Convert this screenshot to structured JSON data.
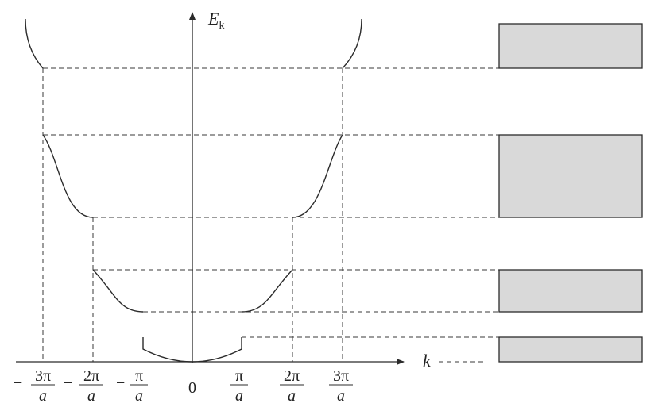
{
  "axes": {
    "y_label": {
      "main": "E",
      "sub": "k"
    },
    "x_label": "k"
  },
  "tick_labels": [
    {
      "id": "neg3",
      "sign": "−",
      "num": "3π",
      "den": "a"
    },
    {
      "id": "neg2",
      "sign": "−",
      "num": "2π",
      "den": "a"
    },
    {
      "id": "neg1",
      "sign": "−",
      "num": "π",
      "den": "a"
    },
    {
      "id": "zero",
      "text": "0"
    },
    {
      "id": "pos1",
      "num": "π",
      "den": "a"
    },
    {
      "id": "pos2",
      "num": "2π",
      "den": "a"
    },
    {
      "id": "pos3",
      "num": "3π",
      "den": "a"
    }
  ],
  "colors": {
    "line": "#2b2b2b",
    "dashed": "#3a3a3a",
    "band_fill": "#d9d9d9",
    "band_stroke": "#2b2b2b"
  }
}
